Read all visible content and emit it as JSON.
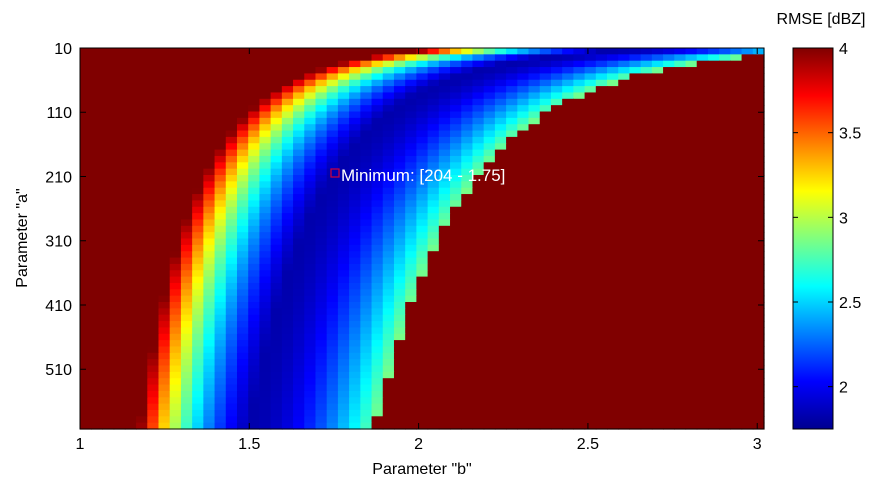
{
  "chart_data": {
    "type": "heatmap",
    "title": "",
    "xlabel": "Parameter \"b\"",
    "ylabel": "Parameter \"a\"",
    "x_range": [
      1,
      3.02
    ],
    "y_range": [
      10,
      603
    ],
    "y_reversed": true,
    "x_ticks": [
      1,
      1.5,
      2,
      2.5,
      3
    ],
    "x_tick_labels": [
      "1",
      "1.5",
      "2",
      "2.5",
      "3"
    ],
    "y_ticks": [
      10,
      110,
      210,
      310,
      410,
      510
    ],
    "y_tick_labels": [
      "10",
      "110",
      "210",
      "310",
      "410",
      "510"
    ],
    "grid_cols": 61,
    "grid_rows": 60,
    "colormap": "jet",
    "colorbar": {
      "title": "RMSE [dBZ]",
      "range": [
        1.75,
        4.0
      ],
      "ticks": [
        2,
        2.5,
        3,
        3.5,
        4
      ],
      "tick_labels": [
        "2",
        "2.5",
        "3",
        "3.5",
        "4"
      ]
    },
    "minimum": {
      "a": 204,
      "b": 1.75,
      "label": "Minimum: [204 - 1.75]"
    }
  }
}
